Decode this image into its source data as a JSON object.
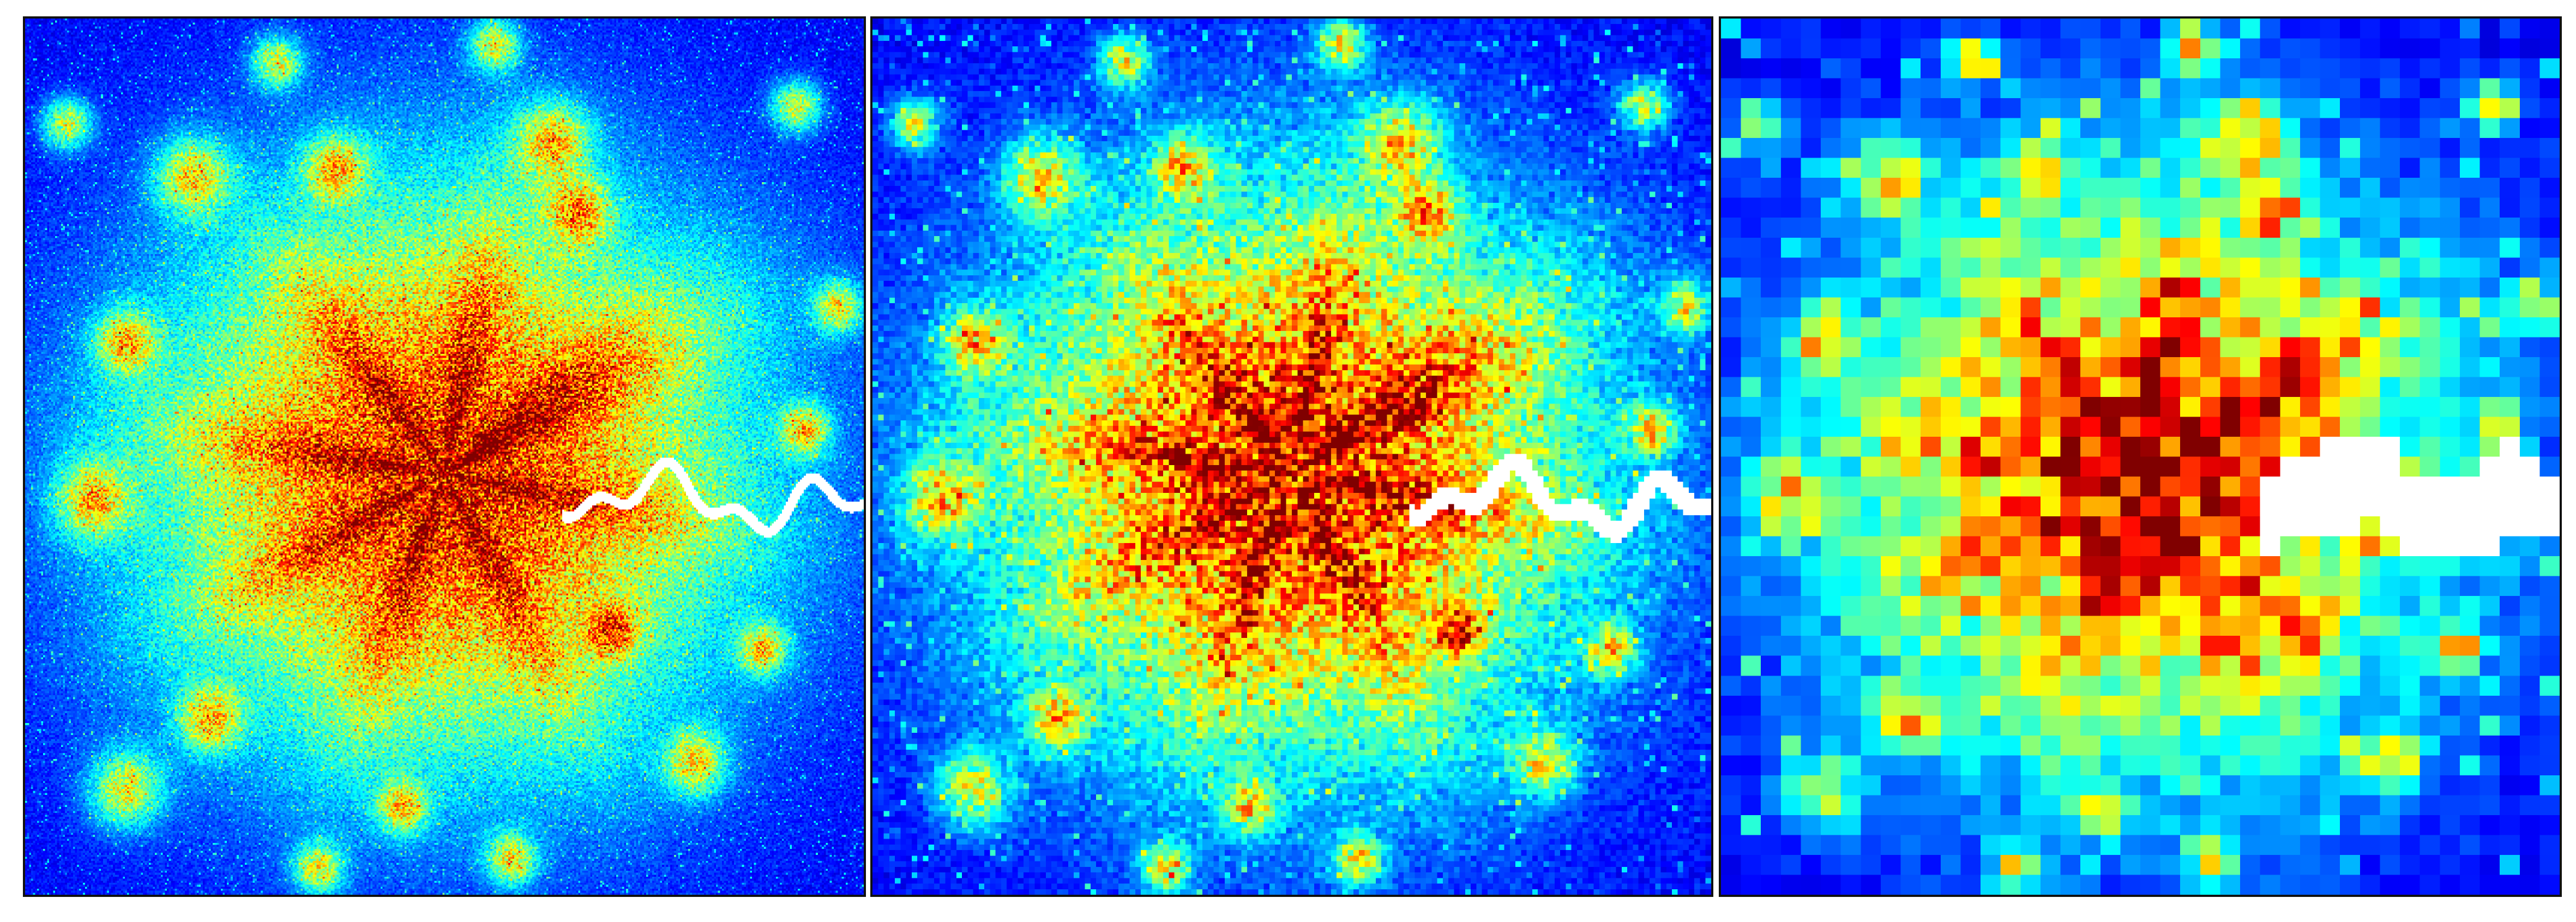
{
  "figure": {
    "description_visible_text": "",
    "colormap": "jet",
    "colormap_stops": [
      "#00008f",
      "#0000ff",
      "#0080ff",
      "#00ffff",
      "#80ff80",
      "#ffff00",
      "#ff8000",
      "#ff0000",
      "#800000"
    ],
    "river_color": "#ffffff",
    "background_color": "#ffffff",
    "border_color": "#111111"
  },
  "panels": [
    {
      "id": "panel-1",
      "resolution_label": "",
      "grid_cells": 420,
      "seed": 11
    },
    {
      "id": "panel-2",
      "resolution_label": "",
      "grid_cells": 150,
      "seed": 23
    },
    {
      "id": "panel-3",
      "resolution_label": "",
      "grid_cells": 42,
      "seed": 37
    }
  ]
}
